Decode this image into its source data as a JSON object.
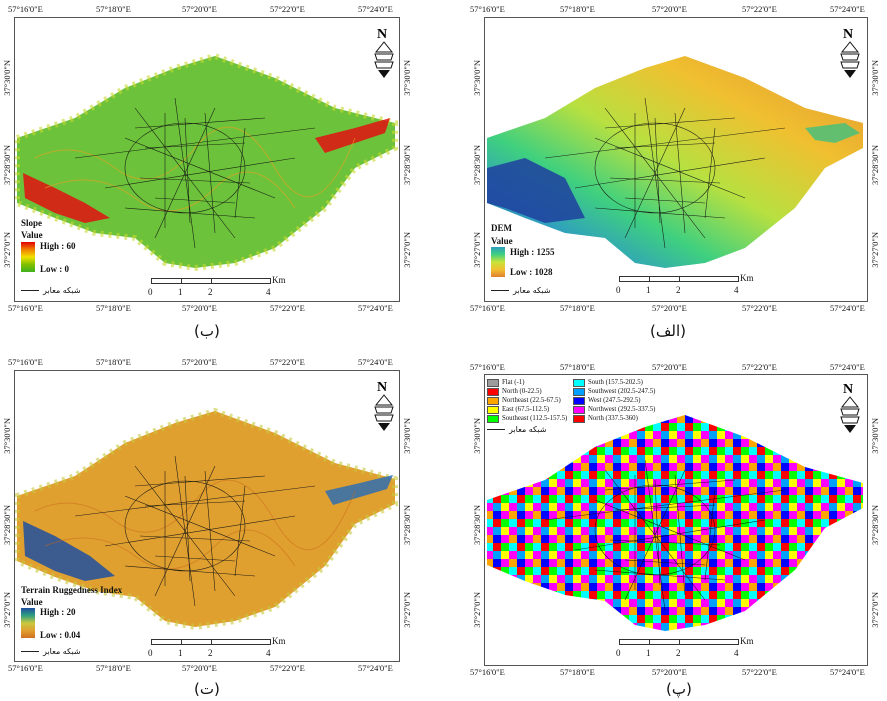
{
  "panels": {
    "alef": {
      "caption": "(الف)",
      "legend_title": "DEM",
      "legend_sub": "Value",
      "high_label": "High : 1255",
      "low_label": "Low : 1028",
      "ramp_colors": [
        "#1f2f8f",
        "#2f9fbf",
        "#3fd07f",
        "#c8e43a",
        "#f0c030",
        "#e08030"
      ]
    },
    "be": {
      "caption": "(ب)",
      "legend_title": "Slope",
      "legend_sub": "Value",
      "high_label": "High : 60",
      "low_label": "Low : 0",
      "ramp_colors": [
        "#e00000",
        "#f08000",
        "#f0e000",
        "#80c000",
        "#40b020"
      ]
    },
    "pe": {
      "caption": "(پ)",
      "aspect_legend": [
        {
          "label": "Flat (-1)",
          "color": "#9c9c9c"
        },
        {
          "label": "North (0-22.5)",
          "color": "#ff0000"
        },
        {
          "label": "Northeast (22.5-67.5)",
          "color": "#ffa500"
        },
        {
          "label": "East (67.5-112.5)",
          "color": "#ffff00"
        },
        {
          "label": "Southeast (112.5-157.5)",
          "color": "#00ff00"
        },
        {
          "label": "South (157.5-202.5)",
          "color": "#00ffff"
        },
        {
          "label": "Southwest (202.5-247.5)",
          "color": "#00a0ff"
        },
        {
          "label": "West (247.5-292.5)",
          "color": "#0000ff"
        },
        {
          "label": "Northwest (292.5-337.5)",
          "color": "#ff00ff"
        },
        {
          "label": "North (337.5-360)",
          "color": "#ff0000"
        }
      ]
    },
    "te": {
      "caption": "(ت)",
      "legend_title": "Terrain Ruggedness Index",
      "legend_sub": "Value",
      "high_label": "High : 20",
      "low_label": "Low : 0.04",
      "ramp_colors": [
        "#1f4fa0",
        "#2fa080",
        "#c8c840",
        "#e0a030",
        "#d07020"
      ]
    }
  },
  "common": {
    "lon_ticks": [
      "57°16'0\"E",
      "57°18'0\"E",
      "57°20'0\"E",
      "57°22'0\"E",
      "57°24'0\"E"
    ],
    "lat_ticks": [
      "37°30'0\"N",
      "37°28'30\"N",
      "37°27'0\"N"
    ],
    "scale_labels": [
      "0",
      "1",
      "2",
      "4"
    ],
    "scale_unit": "Km",
    "roads_label": "شبکه معابر",
    "north_letter": "N"
  },
  "colors": {
    "frame": "#555555",
    "roads": "#111111"
  }
}
